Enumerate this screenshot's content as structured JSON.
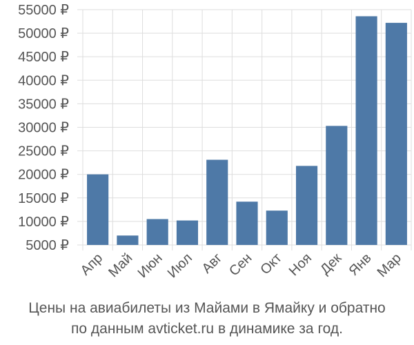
{
  "chart_data": {
    "type": "bar",
    "categories": [
      "Апр",
      "Май",
      "Июн",
      "Июл",
      "Авг",
      "Сен",
      "Окт",
      "Ноя",
      "Дек",
      "Янв",
      "Мар"
    ],
    "values": [
      20000,
      7000,
      10500,
      10200,
      23100,
      14200,
      12300,
      21800,
      30300,
      53600,
      52200
    ],
    "ylim": [
      5000,
      55000
    ],
    "yticks": [
      "5000 ₽",
      "10000 ₽",
      "15000 ₽",
      "20000 ₽",
      "25000 ₽",
      "30000 ₽",
      "35000 ₽",
      "40000 ₽",
      "45000 ₽",
      "50000 ₽",
      "55000 ₽"
    ],
    "ytick_values": [
      5000,
      10000,
      15000,
      20000,
      25000,
      30000,
      35000,
      40000,
      45000,
      50000,
      55000
    ],
    "bar_color": "#4e79a7",
    "grid": true
  },
  "caption": {
    "line1": "Цены на авиабилеты из Майами в Ямайку и обратно",
    "line2": "по данным avticket.ru в динамике за год."
  }
}
